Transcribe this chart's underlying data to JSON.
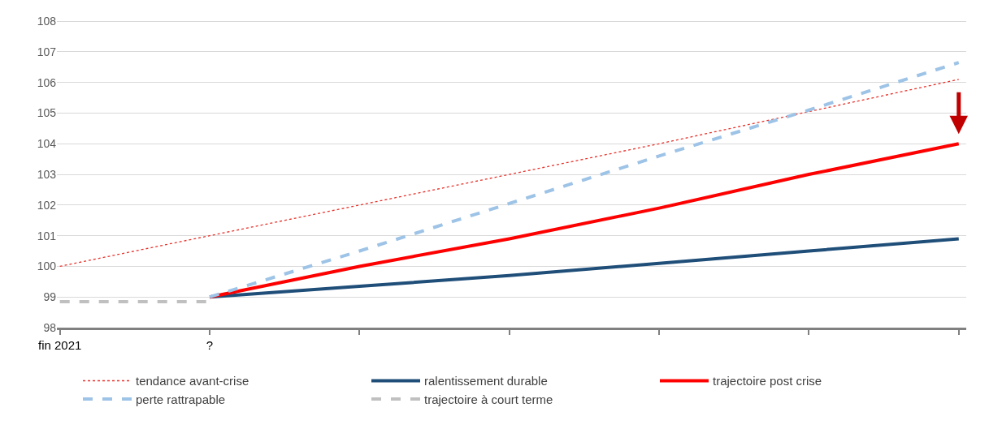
{
  "chart_data": {
    "type": "line",
    "categories": [
      "fin 2021",
      "?",
      null,
      null,
      null,
      null,
      null
    ],
    "ylim": [
      98,
      108
    ],
    "yticks": [
      98,
      99,
      100,
      101,
      102,
      103,
      104,
      105,
      106,
      107,
      108
    ],
    "grid": "y",
    "legend": "bottom",
    "series": [
      {
        "name": "tendance avant-crise",
        "color": "#e8312a",
        "line_style": "dotted",
        "values": [
          100,
          101,
          102,
          103,
          104,
          105.05,
          106.1
        ]
      },
      {
        "name": "ralentissement durable",
        "color": "#1f4e79",
        "line_style": "solid",
        "values": [
          null,
          99,
          99.35,
          99.7,
          100.1,
          100.5,
          100.9
        ]
      },
      {
        "name": "trajectoire post crise",
        "color": "#ff0000",
        "line_style": "solid",
        "values": [
          null,
          99,
          100.0,
          100.9,
          101.9,
          103.0,
          104.0
        ]
      },
      {
        "name": "perte rattrapable",
        "color": "#9dc3e6",
        "line_style": "dashed",
        "values": [
          null,
          99,
          100.5,
          102.05,
          103.6,
          105.1,
          106.65
        ]
      },
      {
        "name": "trajectoire à court terme",
        "color": "#c0c0c0",
        "line_style": "dashed",
        "values": [
          98.85,
          98.85,
          null,
          null,
          null,
          null,
          null
        ]
      }
    ]
  }
}
